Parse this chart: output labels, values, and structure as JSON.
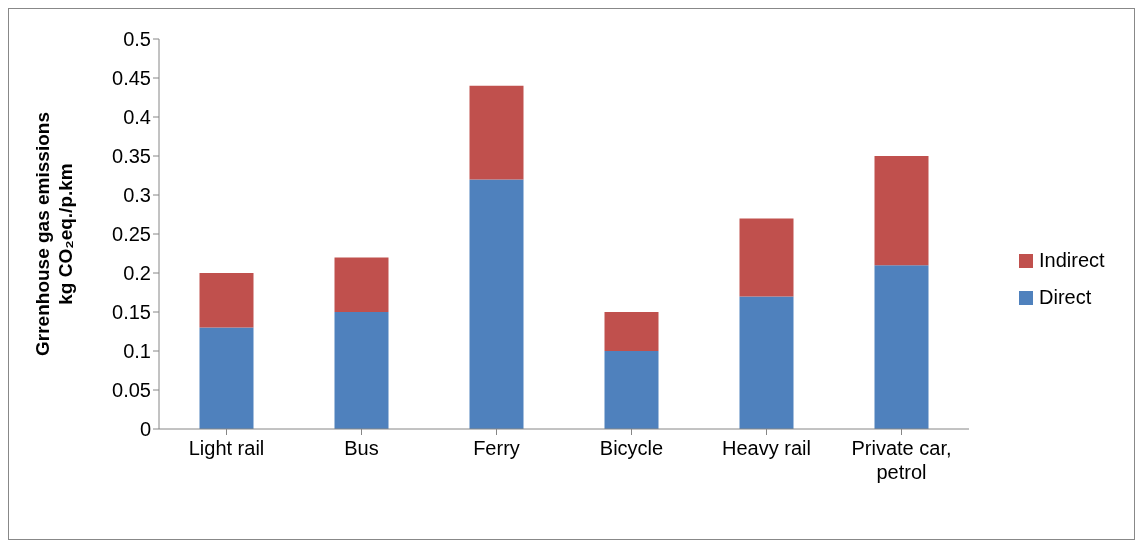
{
  "chart_data": {
    "type": "bar",
    "stacked": true,
    "ylabel": "Grrenhouse gas emissions\nkg CO₂eq./p.km",
    "categories": [
      "Light rail",
      "Bus",
      "Ferry",
      "Bicycle",
      "Heavy rail",
      "Private car, petrol"
    ],
    "series": [
      {
        "name": "Direct",
        "color": "#4f81bd",
        "values": [
          0.13,
          0.15,
          0.32,
          0.1,
          0.17,
          0.21
        ]
      },
      {
        "name": "Indirect",
        "color": "#c0504d",
        "values": [
          0.07,
          0.07,
          0.12,
          0.05,
          0.1,
          0.14
        ]
      }
    ],
    "ylim": [
      0,
      0.5
    ],
    "yticks": [
      0,
      0.05,
      0.1,
      0.15,
      0.2,
      0.25,
      0.3,
      0.35,
      0.4,
      0.45,
      0.5
    ],
    "grid": false,
    "legend": "right"
  }
}
